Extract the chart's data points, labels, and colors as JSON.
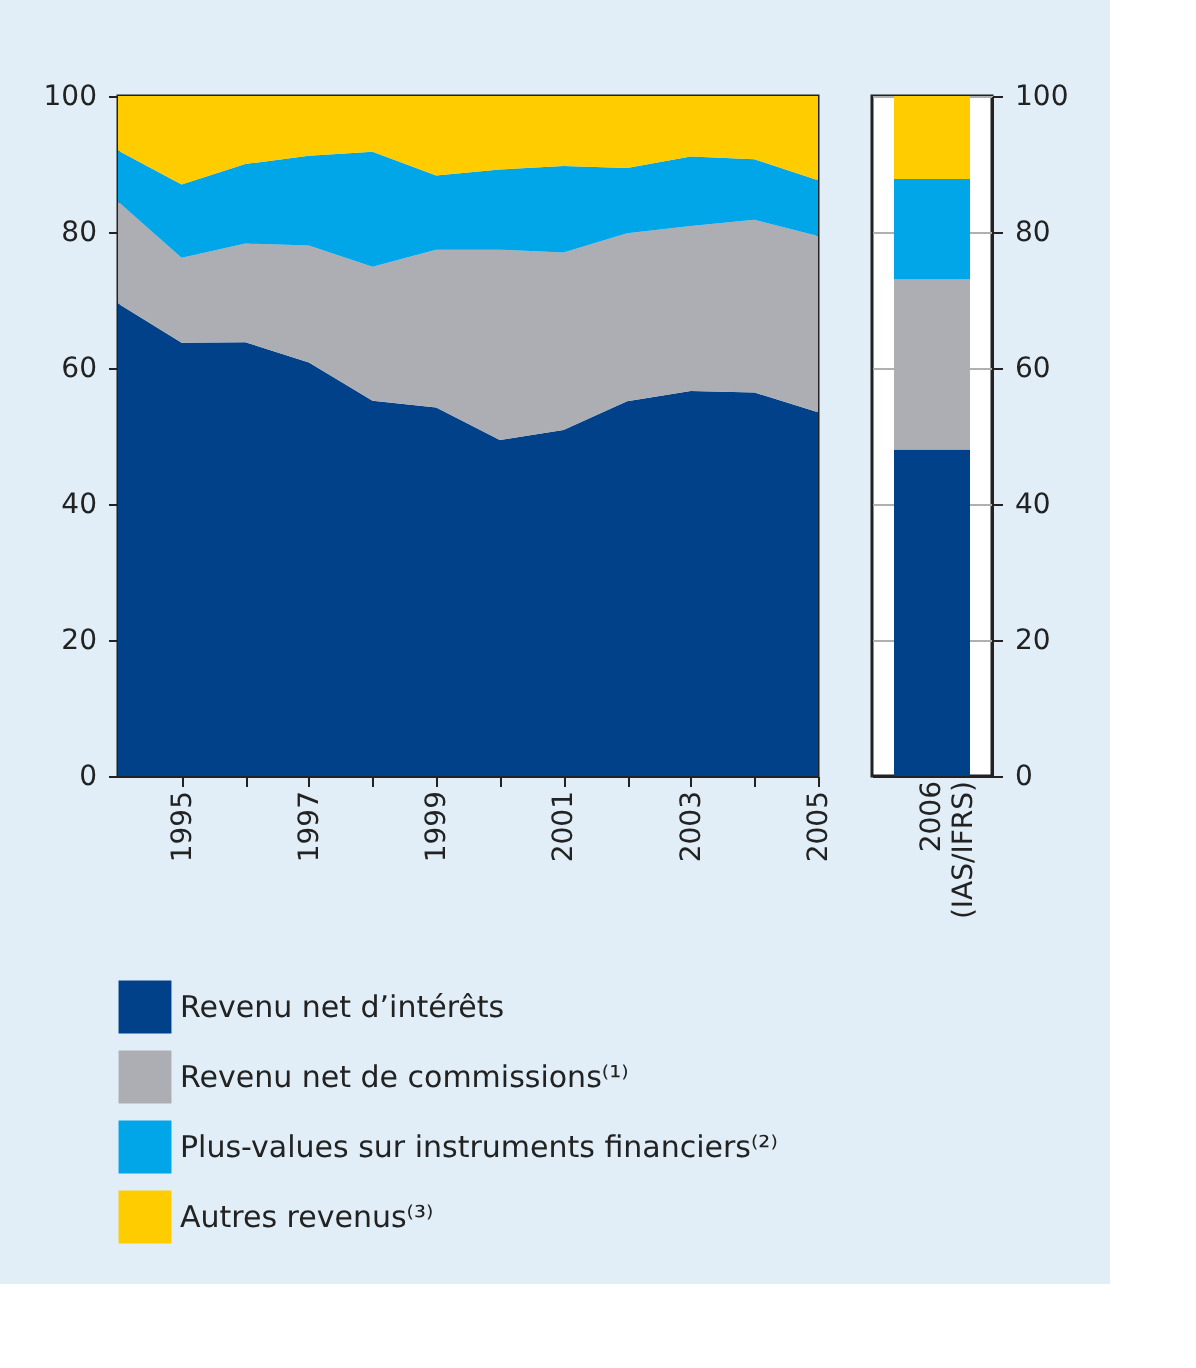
{
  "chart_data": [
    {
      "type": "area",
      "stacked": true,
      "legend": "bottom",
      "x": [
        1994,
        1995,
        1996,
        1997,
        1998,
        1999,
        2000,
        2001,
        2002,
        2003,
        2004,
        2005
      ],
      "series": [
        {
          "name": "Revenu net d’intérêts",
          "color": "#00418a",
          "values": [
            69.5,
            63.7,
            63.8,
            60.8,
            55.2,
            54.2,
            49.4,
            50.9,
            55.1,
            56.6,
            56.4,
            53.5
          ]
        },
        {
          "name": "Revenu net de commissions⁽¹⁾",
          "color": "#adaeb3",
          "values": [
            15.0,
            12.5,
            14.5,
            17.2,
            19.7,
            23.2,
            28.0,
            26.1,
            24.7,
            24.3,
            25.4,
            25.9
          ]
        },
        {
          "name": "Plus-values sur instruments financiers⁽²⁾",
          "color": "#00a6e8",
          "values": [
            7.5,
            10.8,
            11.7,
            13.2,
            16.9,
            10.9,
            11.8,
            12.7,
            9.6,
            10.2,
            8.9,
            8.2
          ]
        },
        {
          "name": "Autres revenus⁽³⁾",
          "color": "#ffcc00",
          "values": [
            8.0,
            13.0,
            10.0,
            8.8,
            8.2,
            11.7,
            10.8,
            10.3,
            10.6,
            8.9,
            9.3,
            12.4
          ]
        }
      ],
      "xlim": [
        1994,
        2005
      ],
      "xticks": [
        1995,
        {
          "value": 1996,
          "label": null
        },
        1997,
        {
          "value": 1998,
          "label": null
        },
        1999,
        {
          "value": 2000,
          "label": null
        },
        2001,
        {
          "value": 2002,
          "label": null
        },
        2003,
        {
          "value": 2004,
          "label": null
        },
        2005
      ],
      "ylim": [
        0,
        100
      ],
      "yticks": [
        0,
        20,
        40,
        60,
        80,
        100
      ]
    },
    {
      "type": "bar",
      "stacked": true,
      "legend": "bottom",
      "grid": "y",
      "categories": [
        "2006 (IAS/IFRS)"
      ],
      "series": [
        {
          "name": "Revenu net d’intérêts",
          "color": "#00418a",
          "values": [
            48
          ]
        },
        {
          "name": "Revenu net de commissions⁽¹⁾",
          "color": "#adaeb3",
          "values": [
            25
          ]
        },
        {
          "name": "Plus-values sur instruments financiers⁽²⁾",
          "color": "#00a6e8",
          "values": [
            14.8
          ]
        },
        {
          "name": "Autres revenus⁽³⁾",
          "color": "#ffcc00",
          "values": [
            12.2
          ]
        }
      ],
      "ylim": [
        0,
        100
      ],
      "yticks": [
        0,
        20,
        40,
        60,
        80,
        100
      ]
    }
  ]
}
